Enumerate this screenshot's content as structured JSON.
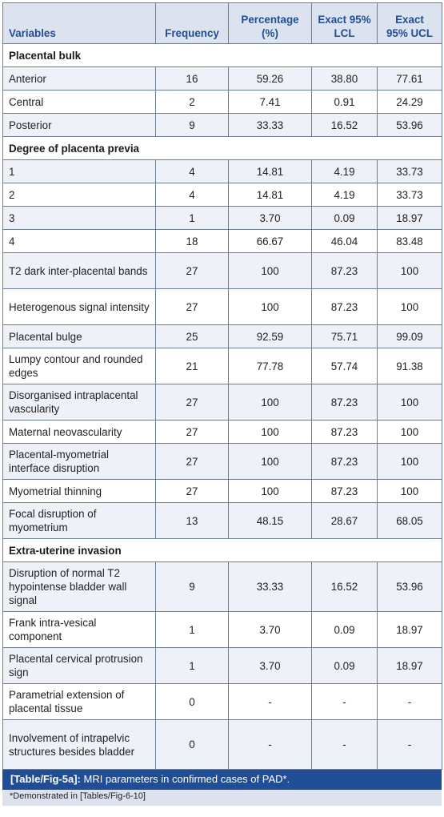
{
  "headers": [
    "Variables",
    "Frequency",
    "Percentage (%)",
    "Exact 95% LCL",
    "Exact 95% UCL"
  ],
  "rows": [
    {
      "type": "section",
      "label": "Placental bulk"
    },
    {
      "type": "data",
      "label": "Anterior",
      "values": [
        "16",
        "59.26",
        "38.80",
        "77.61"
      ]
    },
    {
      "type": "data",
      "label": "Central",
      "values": [
        "2",
        "7.41",
        "0.91",
        "24.29"
      ]
    },
    {
      "type": "data",
      "label": "Posterior",
      "values": [
        "9",
        "33.33",
        "16.52",
        "53.96"
      ]
    },
    {
      "type": "section",
      "label": "Degree of placenta previa"
    },
    {
      "type": "data",
      "label": "1",
      "values": [
        "4",
        "14.81",
        "4.19",
        "33.73"
      ]
    },
    {
      "type": "data",
      "label": "2",
      "values": [
        "4",
        "14.81",
        "4.19",
        "33.73"
      ]
    },
    {
      "type": "data",
      "label": "3",
      "values": [
        "1",
        "3.70",
        "0.09",
        "18.97"
      ]
    },
    {
      "type": "data",
      "label": "4",
      "values": [
        "18",
        "66.67",
        "46.04",
        "83.48"
      ]
    },
    {
      "type": "data",
      "label": "T2 dark inter-placental bands",
      "values": [
        "27",
        "100",
        "87.23",
        "100"
      ]
    },
    {
      "type": "data",
      "label": "Heterogenous signal intensity",
      "values": [
        "27",
        "100",
        "87.23",
        "100"
      ]
    },
    {
      "type": "data",
      "label": "Placental bulge",
      "values": [
        "25",
        "92.59",
        "75.71",
        "99.09"
      ]
    },
    {
      "type": "data",
      "label": "Lumpy contour and rounded edges",
      "values": [
        "21",
        "77.78",
        "57.74",
        "91.38"
      ]
    },
    {
      "type": "data",
      "label": "Disorganised intraplacental vascularity",
      "values": [
        "27",
        "100",
        "87.23",
        "100"
      ]
    },
    {
      "type": "data",
      "label": "Maternal neovascularity",
      "values": [
        "27",
        "100",
        "87.23",
        "100"
      ]
    },
    {
      "type": "data",
      "label": "Placental-myometrial interface disruption",
      "values": [
        "27",
        "100",
        "87.23",
        "100"
      ]
    },
    {
      "type": "data",
      "label": "Myometrial thinning",
      "values": [
        "27",
        "100",
        "87.23",
        "100"
      ]
    },
    {
      "type": "data",
      "label": "Focal disruption of myometrium",
      "values": [
        "13",
        "48.15",
        "28.67",
        "68.05"
      ]
    },
    {
      "type": "section",
      "label": "Extra-uterine invasion"
    },
    {
      "type": "data",
      "label": "Disruption of normal T2 hypointense bladder wall signal",
      "values": [
        "9",
        "33.33",
        "16.52",
        "53.96"
      ]
    },
    {
      "type": "data",
      "label": "Frank intra-vesical component",
      "values": [
        "1",
        "3.70",
        "0.09",
        "18.97"
      ]
    },
    {
      "type": "data",
      "label": "Placental cervical protrusion sign",
      "values": [
        "1",
        "3.70",
        "0.09",
        "18.97"
      ]
    },
    {
      "type": "data",
      "label": "Parametrial extension of placental tissue",
      "values": [
        "0",
        "-",
        "-",
        "-"
      ]
    },
    {
      "type": "data",
      "label": "Involvement of intrapelvic structures besides bladder",
      "values": [
        "0",
        "-",
        "-",
        "-"
      ]
    }
  ],
  "caption": {
    "ref": "[Table/Fig-5a]:",
    "text": " MRI parameters in confirmed cases of PAD*.",
    "footnote": "*Demonstrated in [Tables/Fig-6-10]"
  },
  "colors": {
    "header_bg": "#dde3ee",
    "header_text": "#1f4e96",
    "stripe": "#eef1f8",
    "caption_bg": "#1f4e96",
    "border": "#6f7f93"
  }
}
